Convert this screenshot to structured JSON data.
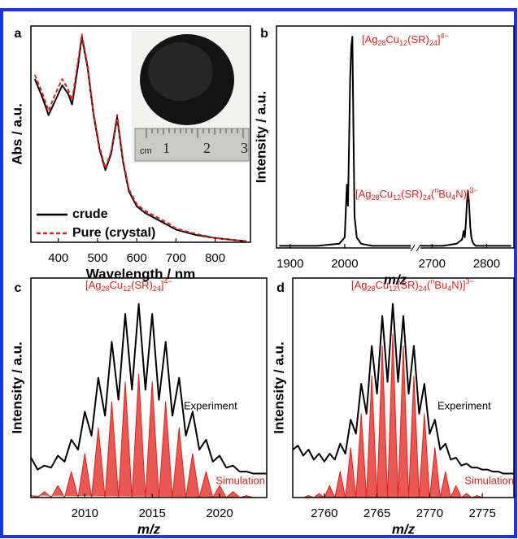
{
  "chart_data": [
    {
      "type": "line",
      "panel_label": "a",
      "xlabel": "Wavelength / nm",
      "ylabel": "Abs / a.u.",
      "xlim": [
        330,
        890
      ],
      "ylim": [
        0,
        1.02
      ],
      "xticks": [
        400,
        500,
        600,
        700,
        800
      ],
      "legend": true,
      "inset_labels": [
        "cm",
        "1",
        "2",
        "3"
      ],
      "x": [
        340,
        360,
        375,
        390,
        410,
        425,
        435,
        450,
        460,
        475,
        490,
        505,
        520,
        535,
        550,
        565,
        580,
        600,
        620,
        650,
        680,
        700,
        750,
        800,
        850,
        880
      ],
      "series": [
        {
          "name": "crude",
          "color": "#000000",
          "dashed": false,
          "values": [
            0.77,
            0.68,
            0.6,
            0.66,
            0.74,
            0.7,
            0.65,
            0.83,
            0.97,
            0.82,
            0.6,
            0.44,
            0.34,
            0.42,
            0.59,
            0.38,
            0.24,
            0.17,
            0.14,
            0.11,
            0.08,
            0.06,
            0.035,
            0.02,
            0.01,
            0.005
          ]
        },
        {
          "name": "Pure (crystal)",
          "color": "#e3201b",
          "dashed": true,
          "values": [
            0.79,
            0.7,
            0.62,
            0.69,
            0.77,
            0.72,
            0.67,
            0.85,
            0.98,
            0.83,
            0.61,
            0.45,
            0.35,
            0.43,
            0.6,
            0.39,
            0.25,
            0.18,
            0.15,
            0.12,
            0.09,
            0.065,
            0.04,
            0.02,
            0.01,
            0.005
          ]
        }
      ]
    },
    {
      "type": "line",
      "panel_label": "b",
      "xlabel": "m/z",
      "ylabel": "Intensity / a.u.",
      "xlim": [
        1875,
        2850
      ],
      "xbreak": [
        2130,
        2670
      ],
      "ylim": [
        0,
        1.05
      ],
      "xticks": [
        1900,
        2000,
        2700,
        2800
      ],
      "legend": false,
      "annotations": [
        {
          "color": "#e3201b",
          "parts": [
            {
              "text": "[Ag"
            },
            {
              "text": "28",
              "script": "sub"
            },
            {
              "text": "Cu"
            },
            {
              "text": "12",
              "script": "sub"
            },
            {
              "text": "(SR)"
            },
            {
              "text": "24",
              "script": "sub"
            },
            {
              "text": "]"
            },
            {
              "text": "4−",
              "script": "sup"
            }
          ]
        },
        {
          "color": "#e3201b",
          "parts": [
            {
              "text": "[Ag"
            },
            {
              "text": "28",
              "script": "sub"
            },
            {
              "text": "Cu"
            },
            {
              "text": "12",
              "script": "sub"
            },
            {
              "text": "(SR)"
            },
            {
              "text": "24",
              "script": "sub"
            },
            {
              "text": "("
            },
            {
              "text": "n",
              "script": "sup"
            },
            {
              "text": "Bu"
            },
            {
              "text": "4",
              "script": "sub"
            },
            {
              "text": "N)]"
            },
            {
              "text": "3−",
              "script": "sup"
            }
          ]
        }
      ],
      "x": [
        1880,
        1900,
        1950,
        1990,
        2000,
        2004,
        2006,
        2008,
        2010,
        2012,
        2014,
        2016,
        2018,
        2022,
        2030,
        2050,
        2100,
        2690,
        2720,
        2745,
        2755,
        2758,
        2760,
        2762,
        2764,
        2766,
        2768,
        2770,
        2772,
        2774,
        2776,
        2780,
        2800,
        2845
      ],
      "series": [
        {
          "color": "#000000",
          "values": [
            0.01,
            0.01,
            0.01,
            0.02,
            0.05,
            0.3,
            0.2,
            0.5,
            0.8,
            0.95,
            1.0,
            0.55,
            0.15,
            0.05,
            0.02,
            0.01,
            0.01,
            0.01,
            0.01,
            0.02,
            0.04,
            0.08,
            0.05,
            0.12,
            0.22,
            0.27,
            0.2,
            0.1,
            0.05,
            0.03,
            0.02,
            0.01,
            0.01,
            0.01
          ]
        }
      ]
    },
    {
      "type": "line",
      "panel_label": "c",
      "xlabel": "m/z",
      "ylabel": "Intensity / a.u.",
      "xlim": [
        2006,
        2023.5
      ],
      "ylim": [
        0,
        1.1
      ],
      "xticks": [
        2010,
        2015,
        2020
      ],
      "legend": false,
      "annotations": [
        {
          "color": "#e3201b",
          "parts": [
            {
              "text": "[Ag"
            },
            {
              "text": "28",
              "script": "sub"
            },
            {
              "text": "Cu"
            },
            {
              "text": "12",
              "script": "sub"
            },
            {
              "text": "(SR)"
            },
            {
              "text": "24",
              "script": "sub"
            },
            {
              "text": "]"
            },
            {
              "text": "4−",
              "script": "sup"
            }
          ]
        }
      ],
      "x": [
        2006,
        2006.5,
        2007,
        2007.5,
        2008,
        2008.5,
        2009,
        2009.5,
        2010,
        2010.5,
        2011,
        2011.5,
        2012,
        2012.5,
        2013,
        2013.5,
        2014,
        2014.5,
        2015,
        2015.5,
        2016,
        2016.5,
        2017,
        2017.5,
        2018,
        2018.5,
        2019,
        2019.5,
        2020,
        2020.5,
        2021,
        2021.5,
        2022,
        2022.5,
        2023,
        2023.5
      ],
      "series": [
        {
          "name": "Experiment",
          "color": "#000000",
          "filled": false,
          "values": [
            0.2,
            0.14,
            0.16,
            0.15,
            0.21,
            0.18,
            0.29,
            0.24,
            0.43,
            0.31,
            0.6,
            0.41,
            0.78,
            0.49,
            0.92,
            0.54,
            0.97,
            0.54,
            0.92,
            0.49,
            0.78,
            0.41,
            0.6,
            0.31,
            0.43,
            0.24,
            0.29,
            0.18,
            0.21,
            0.15,
            0.16,
            0.13,
            0.13,
            0.12,
            0.12,
            0.12
          ]
        },
        {
          "name": "Simulation",
          "color": "#e3201b",
          "filled": true,
          "values": [
            0.01,
            0,
            0.03,
            0,
            0.06,
            0,
            0.13,
            0,
            0.22,
            0,
            0.35,
            0,
            0.48,
            0,
            0.58,
            0,
            0.62,
            0,
            0.58,
            0,
            0.48,
            0,
            0.35,
            0,
            0.22,
            0,
            0.13,
            0,
            0.06,
            0,
            0.03,
            0,
            0.01,
            0,
            0,
            0
          ]
        }
      ]
    },
    {
      "type": "line",
      "panel_label": "d",
      "xlabel": "m/z",
      "ylabel": "Intensity / a.u.",
      "xlim": [
        2757,
        2778
      ],
      "ylim": [
        0,
        1.1
      ],
      "xticks": [
        2760,
        2765,
        2770,
        2775
      ],
      "legend": false,
      "annotations": [
        {
          "color": "#e3201b",
          "parts": [
            {
              "text": "[Ag"
            },
            {
              "text": "28",
              "script": "sub"
            },
            {
              "text": "Cu"
            },
            {
              "text": "12",
              "script": "sub"
            },
            {
              "text": "(SR)"
            },
            {
              "text": "24",
              "script": "sub"
            },
            {
              "text": "("
            },
            {
              "text": "n",
              "script": "sup"
            },
            {
              "text": "Bu"
            },
            {
              "text": "4",
              "script": "sub"
            },
            {
              "text": "N)]"
            },
            {
              "text": "3−",
              "script": "sup"
            }
          ]
        }
      ],
      "x": [
        2757,
        2757.5,
        2758,
        2758.5,
        2759,
        2759.5,
        2760,
        2760.5,
        2761,
        2761.5,
        2762,
        2762.5,
        2763,
        2763.5,
        2764,
        2764.5,
        2765,
        2765.5,
        2766,
        2766.5,
        2767,
        2767.5,
        2768,
        2768.5,
        2769,
        2769.5,
        2770,
        2770.5,
        2771,
        2771.5,
        2772,
        2772.5,
        2773,
        2773.5,
        2774,
        2774.5,
        2775,
        2775.5,
        2776,
        2776.5,
        2777,
        2777.5,
        2778
      ],
      "series": [
        {
          "name": "Experiment",
          "color": "#000000",
          "filled": false,
          "values": [
            0.24,
            0.26,
            0.21,
            0.24,
            0.19,
            0.22,
            0.18,
            0.22,
            0.19,
            0.27,
            0.22,
            0.39,
            0.32,
            0.57,
            0.42,
            0.76,
            0.52,
            0.91,
            0.58,
            0.97,
            0.58,
            0.91,
            0.52,
            0.76,
            0.42,
            0.57,
            0.32,
            0.39,
            0.24,
            0.27,
            0.19,
            0.2,
            0.16,
            0.17,
            0.15,
            0.15,
            0.14,
            0.14,
            0.13,
            0.13,
            0.12,
            0.12,
            0.12
          ]
        },
        {
          "name": "Simulation",
          "color": "#e3201b",
          "filled": true,
          "values": [
            0,
            0,
            0,
            0.01,
            0,
            0.02,
            0,
            0.06,
            0,
            0.13,
            0,
            0.25,
            0,
            0.42,
            0,
            0.61,
            0,
            0.76,
            0,
            0.82,
            0,
            0.76,
            0,
            0.61,
            0,
            0.42,
            0,
            0.25,
            0,
            0.13,
            0,
            0.06,
            0,
            0.02,
            0,
            0.01,
            0,
            0,
            0,
            0,
            0,
            0,
            0
          ]
        }
      ]
    }
  ]
}
